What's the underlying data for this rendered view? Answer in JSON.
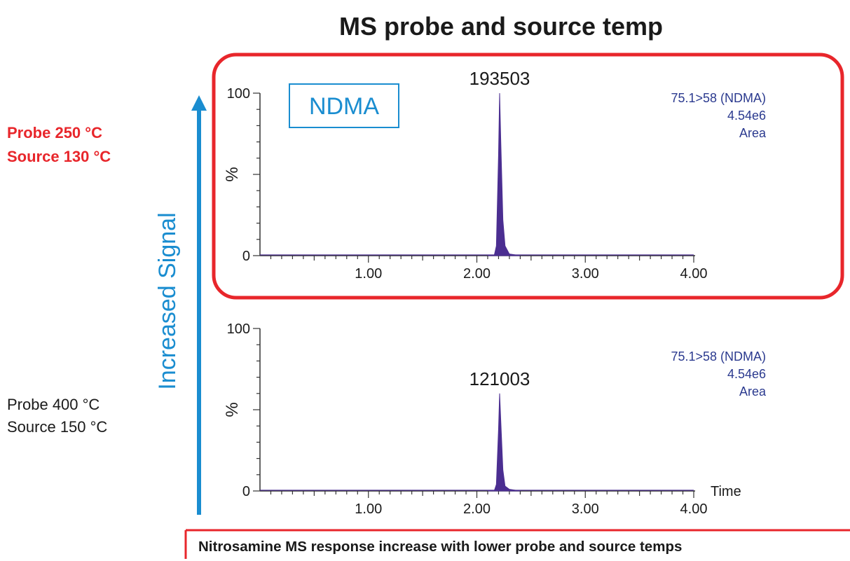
{
  "title": "MS probe and source temp",
  "arrow_label": "Increased Signal",
  "conditions": [
    {
      "line1": "Probe 250 °C",
      "line2": "Source 130 °C",
      "color": "#e8262b"
    },
    {
      "line1": "Probe 400 °C",
      "line2": "Source 150 °C",
      "color": "#1a1a1a"
    }
  ],
  "compound_tag": "NDMA",
  "footer": "Nitrosamine MS response increase with lower probe and source temps",
  "colors": {
    "peak_fill": "#4b2e91",
    "info_text": "#2b3a8f",
    "highlight_border": "#e8262b",
    "arrow": "#1a8dd0",
    "tag_border": "#1a8dd0"
  },
  "chart_data": [
    {
      "type": "line",
      "title": "",
      "xlabel": "",
      "ylabel": "%",
      "xlim": [
        0.0,
        4.0
      ],
      "ylim": [
        0,
        100
      ],
      "y_ticks": [
        "0",
        "100"
      ],
      "x_ticks": [
        "1.00",
        "2.00",
        "3.00",
        "4.00"
      ],
      "peak": {
        "rt": 2.21,
        "height": 100,
        "label": "193503"
      },
      "info": [
        "75.1>58 (NDMA)",
        "4.54e6",
        "Area"
      ],
      "series": [
        {
          "x": [
            2.1,
            2.16,
            2.18,
            2.2,
            2.21,
            2.22,
            2.24,
            2.26,
            2.3,
            2.4
          ],
          "y": [
            0,
            0,
            6,
            62,
            100,
            72,
            22,
            6,
            1,
            0
          ]
        }
      ]
    },
    {
      "type": "line",
      "title": "",
      "xlabel": "Time",
      "ylabel": "%",
      "xlim": [
        0.0,
        4.0
      ],
      "ylim": [
        0,
        100
      ],
      "y_ticks": [
        "0",
        "100"
      ],
      "x_ticks": [
        "1.00",
        "2.00",
        "3.00",
        "4.00"
      ],
      "peak": {
        "rt": 2.21,
        "height": 60,
        "label": "121003"
      },
      "info": [
        "75.1>58 (NDMA)",
        "4.54e6",
        "Area"
      ],
      "series": [
        {
          "x": [
            2.1,
            2.16,
            2.18,
            2.2,
            2.21,
            2.22,
            2.24,
            2.26,
            2.3,
            2.4
          ],
          "y": [
            0,
            0,
            4,
            38,
            60,
            44,
            13,
            3,
            1,
            0
          ]
        }
      ]
    }
  ]
}
